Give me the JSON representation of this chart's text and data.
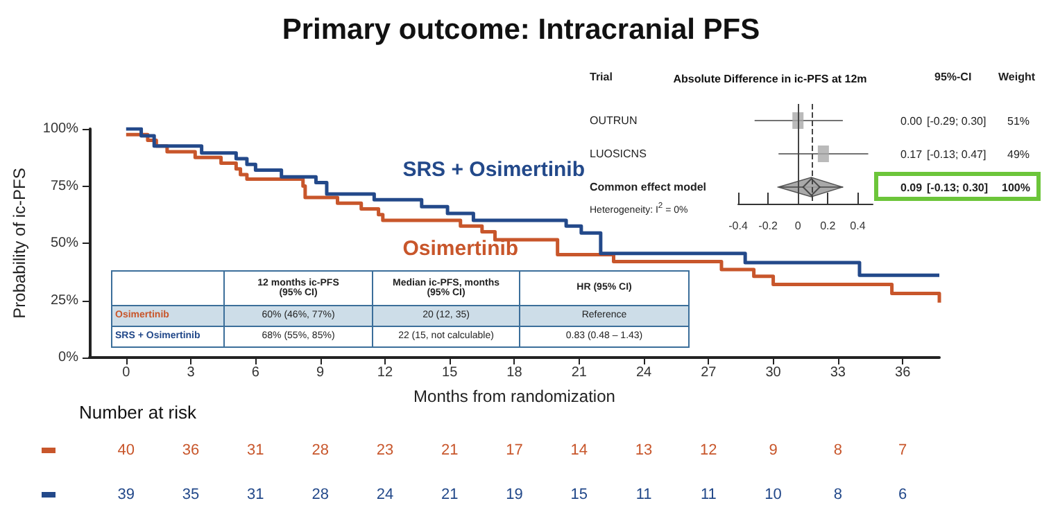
{
  "chart_data": [
    {
      "type": "step",
      "title": "Primary outcome: Intracranial PFS",
      "xlabel": "Months from randomization",
      "ylabel": "Probability of ic-PFS",
      "series": [
        {
          "name": "Osimertinib",
          "color": "#c8562b",
          "x": [
            0,
            1.0,
            1.4,
            1.9,
            3.2,
            4.4,
            5.1,
            5.3,
            5.6,
            8.2,
            8.3,
            9.8,
            10.9,
            11.7,
            11.9,
            15.5,
            16.5,
            17.1,
            20.0,
            22.6,
            27.6,
            29.1,
            30.0,
            35.5,
            37.7
          ],
          "values": [
            97.5,
            95,
            92.5,
            90,
            87.5,
            85,
            82.5,
            80,
            78,
            75,
            70,
            67.5,
            65,
            62.5,
            60,
            57.5,
            55,
            51.5,
            45,
            42,
            38.5,
            35.5,
            32,
            28,
            24
          ]
        },
        {
          "name": "SRS + Osimertinib",
          "color": "#23498a",
          "x": [
            0,
            0.7,
            1.3,
            3.5,
            5.1,
            5.6,
            6.0,
            7.2,
            8.8,
            9.3,
            11.5,
            13.7,
            14.9,
            16.1,
            20.4,
            21.1,
            22.0,
            28.7,
            34.0,
            37.7
          ],
          "values": [
            100,
            97,
            92.5,
            89.5,
            87,
            84.5,
            82,
            79,
            76.5,
            71.5,
            69,
            66,
            63,
            60,
            57.5,
            54.5,
            45.5,
            41.5,
            36,
            36
          ]
        }
      ],
      "xlim": [
        -1.7,
        37.7
      ],
      "xticks": [
        0,
        3,
        6,
        9,
        12,
        15,
        18,
        21,
        24,
        27,
        30,
        33,
        36
      ],
      "ylim": [
        0,
        100
      ],
      "yticks": [
        {
          "value": 0,
          "label": "0%"
        },
        {
          "value": 25,
          "label": "25%"
        },
        {
          "value": 50,
          "label": "50%"
        },
        {
          "value": 75,
          "label": "75%"
        },
        {
          "value": 100,
          "label": "100%"
        }
      ],
      "grid": false,
      "legend": false,
      "annotations": [
        "12 months ic-PFS\n(95% CI)",
        "Median ic-PFS,  months\n(95% CI)",
        "HR (95% CI)",
        "60% (46%, 77%)",
        "20 (12, 35)",
        "Reference",
        "68% (55%, 85%)",
        "22 (15, not calculable)",
        "0.83 (0.48 – 1.43)",
        "Number at risk",
        "40",
        "36",
        "31",
        "28",
        "23",
        "21",
        "17",
        "14",
        "13",
        "12",
        "9",
        "8",
        "7",
        "39",
        "35",
        "31",
        "28",
        "24",
        "21",
        "19",
        "15",
        "11",
        "11",
        "10",
        "8",
        "6"
      ]
    },
    {
      "type": "scatter",
      "orientation": "horizontal",
      "title": "Absolute Difference in ic-PFS at 12m",
      "categories": [
        "OUTRUN",
        "LUOSICNS",
        "Common effect model"
      ],
      "series": [
        {
          "color": "#a9a9a9",
          "marker": "square",
          "values": [
            0.0,
            0.17,
            null
          ],
          "errors": [
            [
              -0.29,
              0.3
            ],
            [
              -0.13,
              0.47
            ],
            null
          ]
        },
        {
          "color": "#a9a9a9",
          "marker": "diamond",
          "values": [
            null,
            null,
            0.09
          ],
          "errors": [
            null,
            null,
            [
              -0.13,
              0.3
            ]
          ]
        }
      ],
      "xlim": [
        -0.4,
        0.5
      ],
      "xticks": [
        -0.4,
        -0.2,
        0,
        0.2,
        0.4
      ],
      "ref_lines": [
        {
          "axis": "x",
          "value": 0,
          "line_style": "solid"
        },
        {
          "axis": "x",
          "value": 0.09,
          "line_style": "dashed"
        }
      ],
      "grid": false,
      "annotations": [
        "Trial",
        "95%-CI",
        "Weight",
        "0.00",
        "[-0.29; 0.30]",
        "51%",
        "0.17",
        "[-0.13; 0.47]",
        "49%",
        "0.09",
        "[-0.13; 0.30]",
        "100%",
        "Heterogeneity: I$^{2}$ = 0%"
      ]
    }
  ]
}
